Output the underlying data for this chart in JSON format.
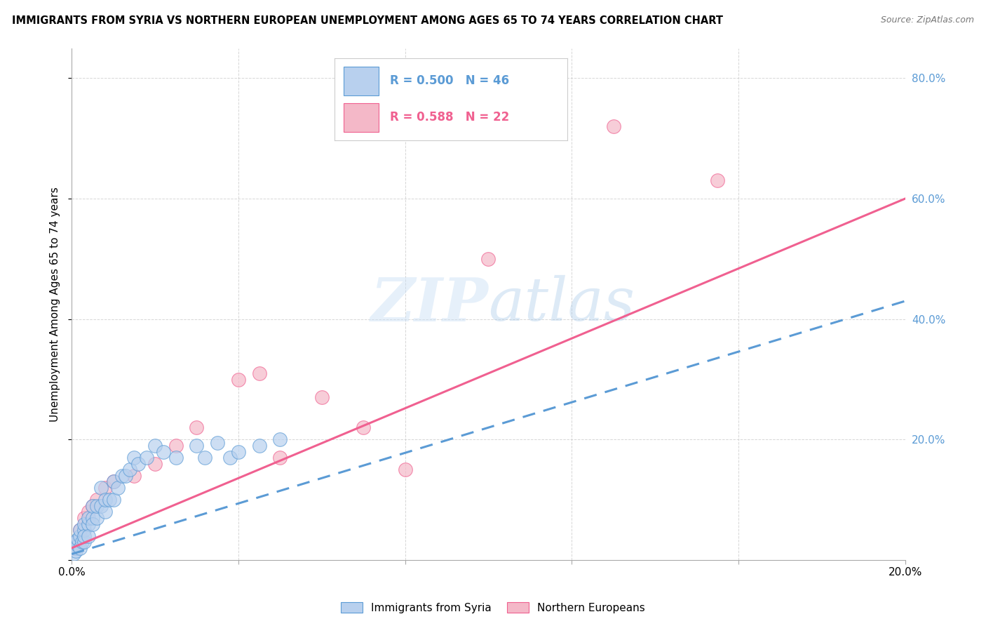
{
  "title": "IMMIGRANTS FROM SYRIA VS NORTHERN EUROPEAN UNEMPLOYMENT AMONG AGES 65 TO 74 YEARS CORRELATION CHART",
  "source": "Source: ZipAtlas.com",
  "ylabel": "Unemployment Among Ages 65 to 74 years",
  "xlim": [
    0.0,
    0.2
  ],
  "ylim": [
    0.0,
    0.85
  ],
  "blue_R": 0.5,
  "blue_N": 46,
  "pink_R": 0.588,
  "pink_N": 22,
  "blue_color": "#b8d0ee",
  "pink_color": "#f4b8c8",
  "blue_line_color": "#5b9bd5",
  "pink_line_color": "#f06090",
  "legend_blue_label": "Immigrants from Syria",
  "legend_pink_label": "Northern Europeans",
  "blue_scatter_x": [
    0.0005,
    0.001,
    0.001,
    0.001,
    0.0015,
    0.0015,
    0.002,
    0.002,
    0.002,
    0.0025,
    0.003,
    0.003,
    0.003,
    0.003,
    0.004,
    0.004,
    0.004,
    0.005,
    0.005,
    0.005,
    0.006,
    0.006,
    0.007,
    0.007,
    0.008,
    0.008,
    0.009,
    0.01,
    0.01,
    0.011,
    0.012,
    0.013,
    0.014,
    0.015,
    0.016,
    0.018,
    0.02,
    0.022,
    0.025,
    0.03,
    0.032,
    0.035,
    0.038,
    0.04,
    0.045,
    0.05
  ],
  "blue_scatter_y": [
    0.01,
    0.02,
    0.03,
    0.015,
    0.025,
    0.035,
    0.02,
    0.04,
    0.05,
    0.03,
    0.03,
    0.05,
    0.06,
    0.04,
    0.06,
    0.04,
    0.07,
    0.07,
    0.09,
    0.06,
    0.07,
    0.09,
    0.09,
    0.12,
    0.08,
    0.1,
    0.1,
    0.1,
    0.13,
    0.12,
    0.14,
    0.14,
    0.15,
    0.17,
    0.16,
    0.17,
    0.19,
    0.18,
    0.17,
    0.19,
    0.17,
    0.195,
    0.17,
    0.18,
    0.19,
    0.2
  ],
  "pink_scatter_x": [
    0.0005,
    0.001,
    0.002,
    0.003,
    0.004,
    0.005,
    0.006,
    0.008,
    0.01,
    0.015,
    0.02,
    0.025,
    0.03,
    0.04,
    0.045,
    0.05,
    0.06,
    0.07,
    0.08,
    0.1,
    0.13,
    0.155
  ],
  "pink_scatter_y": [
    0.02,
    0.03,
    0.05,
    0.07,
    0.08,
    0.09,
    0.1,
    0.12,
    0.13,
    0.14,
    0.16,
    0.19,
    0.22,
    0.3,
    0.31,
    0.17,
    0.27,
    0.22,
    0.15,
    0.5,
    0.72,
    0.63
  ],
  "blue_line_x0": 0.0,
  "blue_line_y0": 0.01,
  "blue_line_x1": 0.2,
  "blue_line_y1": 0.43,
  "pink_line_x0": 0.0,
  "pink_line_y0": 0.02,
  "pink_line_x1": 0.2,
  "pink_line_y1": 0.6
}
